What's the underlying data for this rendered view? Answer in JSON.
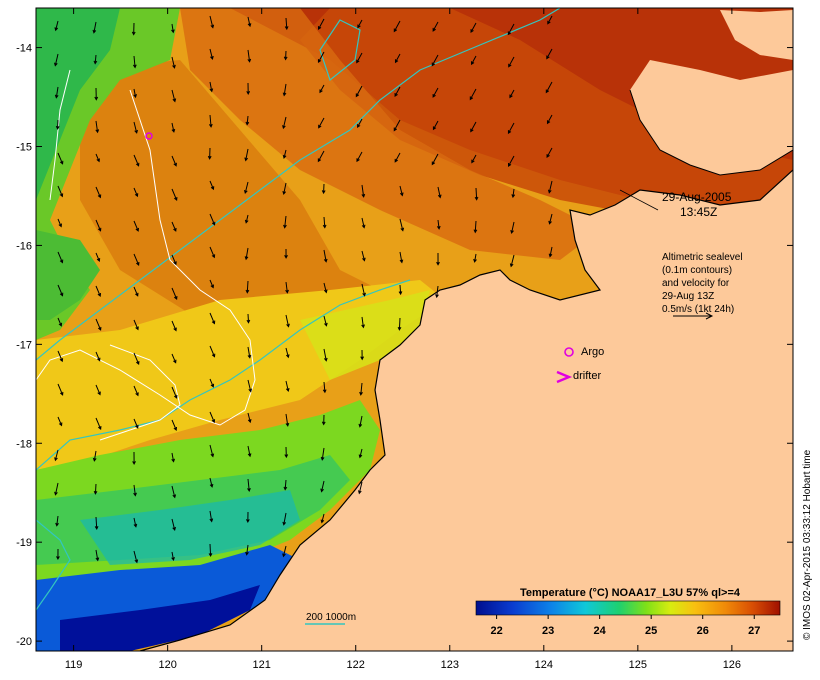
{
  "map": {
    "lon_range": [
      118.6,
      126.65
    ],
    "lat_range": [
      -20.1,
      -13.6
    ],
    "x_ticks": [
      119,
      120,
      121,
      122,
      123,
      124,
      125,
      126
    ],
    "y_ticks": [
      -14,
      -15,
      -16,
      -17,
      -18,
      -19,
      -20
    ],
    "date_line1": "29-Aug-2005",
    "date_line2": "13:45Z",
    "altimetry_note": [
      "Altimetric sealevel",
      "(0.1m contours)",
      "and velocity for",
      "29-Aug 13Z",
      "0.5m/s (1kt 24h)"
    ],
    "argo_label": "Argo",
    "drifter_label": "drifter",
    "depth_legend": "200  1000m",
    "colorbar_title": "Temperature (°C) NOAA17_L3U 57% ql>=4",
    "colorbar_ticks": [
      22,
      23,
      24,
      25,
      26,
      27
    ],
    "colorbar_range": [
      21.6,
      27.5
    ],
    "credit": "© IMOS 02-Apr-2015 03:33:12 Hobart time",
    "colors": {
      "land": "#fdc99a",
      "argo": "#e000e0",
      "isobath": "#33c6c0",
      "contour": "#ffffff",
      "arrows": "#000000"
    }
  }
}
